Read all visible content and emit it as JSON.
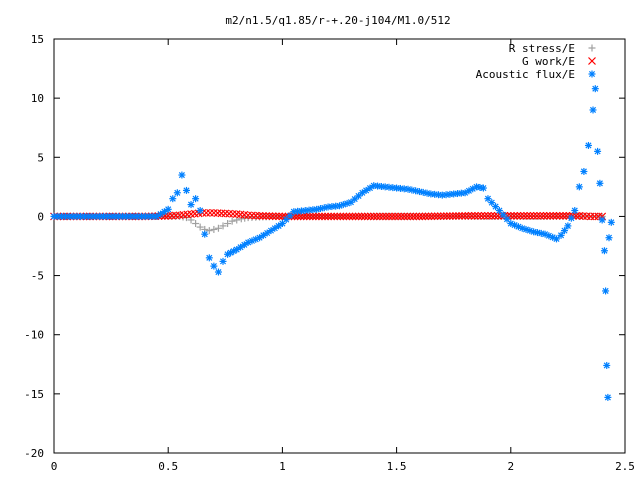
{
  "chart_data": {
    "type": "scatter",
    "title": "m2/n1.5/q1.85/r-+.20-j104/M1.0/512",
    "xlabel": "",
    "ylabel": "",
    "xlim": [
      0,
      2.5
    ],
    "ylim": [
      -20,
      15
    ],
    "x_ticks": [
      "0",
      "0.5",
      "1",
      "1.5",
      "2",
      "2.5"
    ],
    "y_ticks": [
      "15",
      "10",
      "5",
      "0",
      "-5",
      "-10",
      "-15",
      "-20"
    ],
    "grid": false,
    "legend_position": "top-right",
    "series": [
      {
        "name": "R stress/E",
        "marker": "+",
        "color": "#a0a0a0",
        "points": [
          [
            0,
            0
          ],
          [
            0.1,
            0
          ],
          [
            0.2,
            0
          ],
          [
            0.3,
            0
          ],
          [
            0.4,
            0
          ],
          [
            0.5,
            0
          ],
          [
            0.55,
            0
          ],
          [
            0.58,
            -0.1
          ],
          [
            0.6,
            -0.3
          ],
          [
            0.62,
            -0.6
          ],
          [
            0.64,
            -0.9
          ],
          [
            0.66,
            -1.1
          ],
          [
            0.68,
            -1.2
          ],
          [
            0.7,
            -1.1
          ],
          [
            0.72,
            -1.0
          ],
          [
            0.74,
            -0.8
          ],
          [
            0.76,
            -0.6
          ],
          [
            0.78,
            -0.4
          ],
          [
            0.8,
            -0.3
          ],
          [
            0.82,
            -0.2
          ],
          [
            0.85,
            -0.1
          ],
          [
            0.9,
            -0.05
          ],
          [
            1.0,
            0
          ],
          [
            1.2,
            0
          ],
          [
            1.5,
            0
          ],
          [
            1.8,
            0
          ],
          [
            2.0,
            0
          ],
          [
            2.2,
            0
          ],
          [
            2.3,
            0
          ],
          [
            2.4,
            0
          ]
        ]
      },
      {
        "name": "G work/E",
        "marker": "x",
        "color": "#ff0000",
        "points": [
          [
            0,
            0
          ],
          [
            0.1,
            0
          ],
          [
            0.2,
            0
          ],
          [
            0.3,
            0
          ],
          [
            0.4,
            0
          ],
          [
            0.5,
            0.05
          ],
          [
            0.55,
            0.1
          ],
          [
            0.6,
            0.2
          ],
          [
            0.65,
            0.3
          ],
          [
            0.7,
            0.3
          ],
          [
            0.75,
            0.25
          ],
          [
            0.8,
            0.2
          ],
          [
            0.85,
            0.1
          ],
          [
            0.9,
            0.05
          ],
          [
            1.0,
            0
          ],
          [
            1.2,
            0
          ],
          [
            1.4,
            0
          ],
          [
            1.6,
            0
          ],
          [
            1.8,
            0.05
          ],
          [
            1.9,
            0.05
          ],
          [
            2.0,
            0.05
          ],
          [
            2.1,
            0.05
          ],
          [
            2.2,
            0.05
          ],
          [
            2.3,
            0.05
          ],
          [
            2.35,
            0
          ],
          [
            2.4,
            0
          ]
        ]
      },
      {
        "name": "Acoustic flux/E",
        "marker": "*",
        "color": "#0080ff",
        "points": [
          [
            0,
            0
          ],
          [
            0.05,
            0
          ],
          [
            0.1,
            0
          ],
          [
            0.15,
            0
          ],
          [
            0.2,
            0
          ],
          [
            0.25,
            0
          ],
          [
            0.3,
            0
          ],
          [
            0.35,
            0
          ],
          [
            0.4,
            0
          ],
          [
            0.45,
            0
          ],
          [
            0.5,
            0.6
          ],
          [
            0.52,
            1.5
          ],
          [
            0.54,
            2.0
          ],
          [
            0.56,
            3.5
          ],
          [
            0.58,
            2.2
          ],
          [
            0.6,
            1.0
          ],
          [
            0.62,
            1.5
          ],
          [
            0.64,
            0.5
          ],
          [
            0.66,
            -1.5
          ],
          [
            0.68,
            -3.5
          ],
          [
            0.7,
            -4.2
          ],
          [
            0.72,
            -4.7
          ],
          [
            0.74,
            -3.8
          ],
          [
            0.76,
            -3.2
          ],
          [
            0.8,
            -2.8
          ],
          [
            0.85,
            -2.2
          ],
          [
            0.9,
            -1.8
          ],
          [
            0.95,
            -1.2
          ],
          [
            1.0,
            -0.6
          ],
          [
            1.05,
            0.4
          ],
          [
            1.1,
            0.5
          ],
          [
            1.15,
            0.6
          ],
          [
            1.2,
            0.8
          ],
          [
            1.25,
            0.9
          ],
          [
            1.3,
            1.2
          ],
          [
            1.35,
            2.0
          ],
          [
            1.4,
            2.6
          ],
          [
            1.45,
            2.5
          ],
          [
            1.5,
            2.4
          ],
          [
            1.55,
            2.3
          ],
          [
            1.6,
            2.1
          ],
          [
            1.65,
            1.9
          ],
          [
            1.7,
            1.8
          ],
          [
            1.75,
            1.9
          ],
          [
            1.8,
            2.0
          ],
          [
            1.85,
            2.5
          ],
          [
            1.88,
            2.4
          ],
          [
            1.9,
            1.5
          ],
          [
            1.95,
            0.5
          ],
          [
            2.0,
            -0.6
          ],
          [
            2.05,
            -1.0
          ],
          [
            2.1,
            -1.3
          ],
          [
            2.15,
            -1.5
          ],
          [
            2.2,
            -1.9
          ],
          [
            2.22,
            -1.6
          ],
          [
            2.25,
            -0.8
          ],
          [
            2.28,
            0.5
          ],
          [
            2.3,
            2.5
          ],
          [
            2.32,
            3.8
          ],
          [
            2.34,
            6.0
          ],
          [
            2.36,
            9.0
          ],
          [
            2.37,
            10.8
          ],
          [
            2.38,
            5.5
          ],
          [
            2.39,
            2.8
          ],
          [
            2.4,
            -0.3
          ],
          [
            2.41,
            -2.9
          ],
          [
            2.415,
            -6.3
          ],
          [
            2.42,
            -12.6
          ],
          [
            2.425,
            -15.3
          ],
          [
            2.43,
            -1.8
          ],
          [
            2.44,
            -0.5
          ]
        ]
      }
    ]
  }
}
